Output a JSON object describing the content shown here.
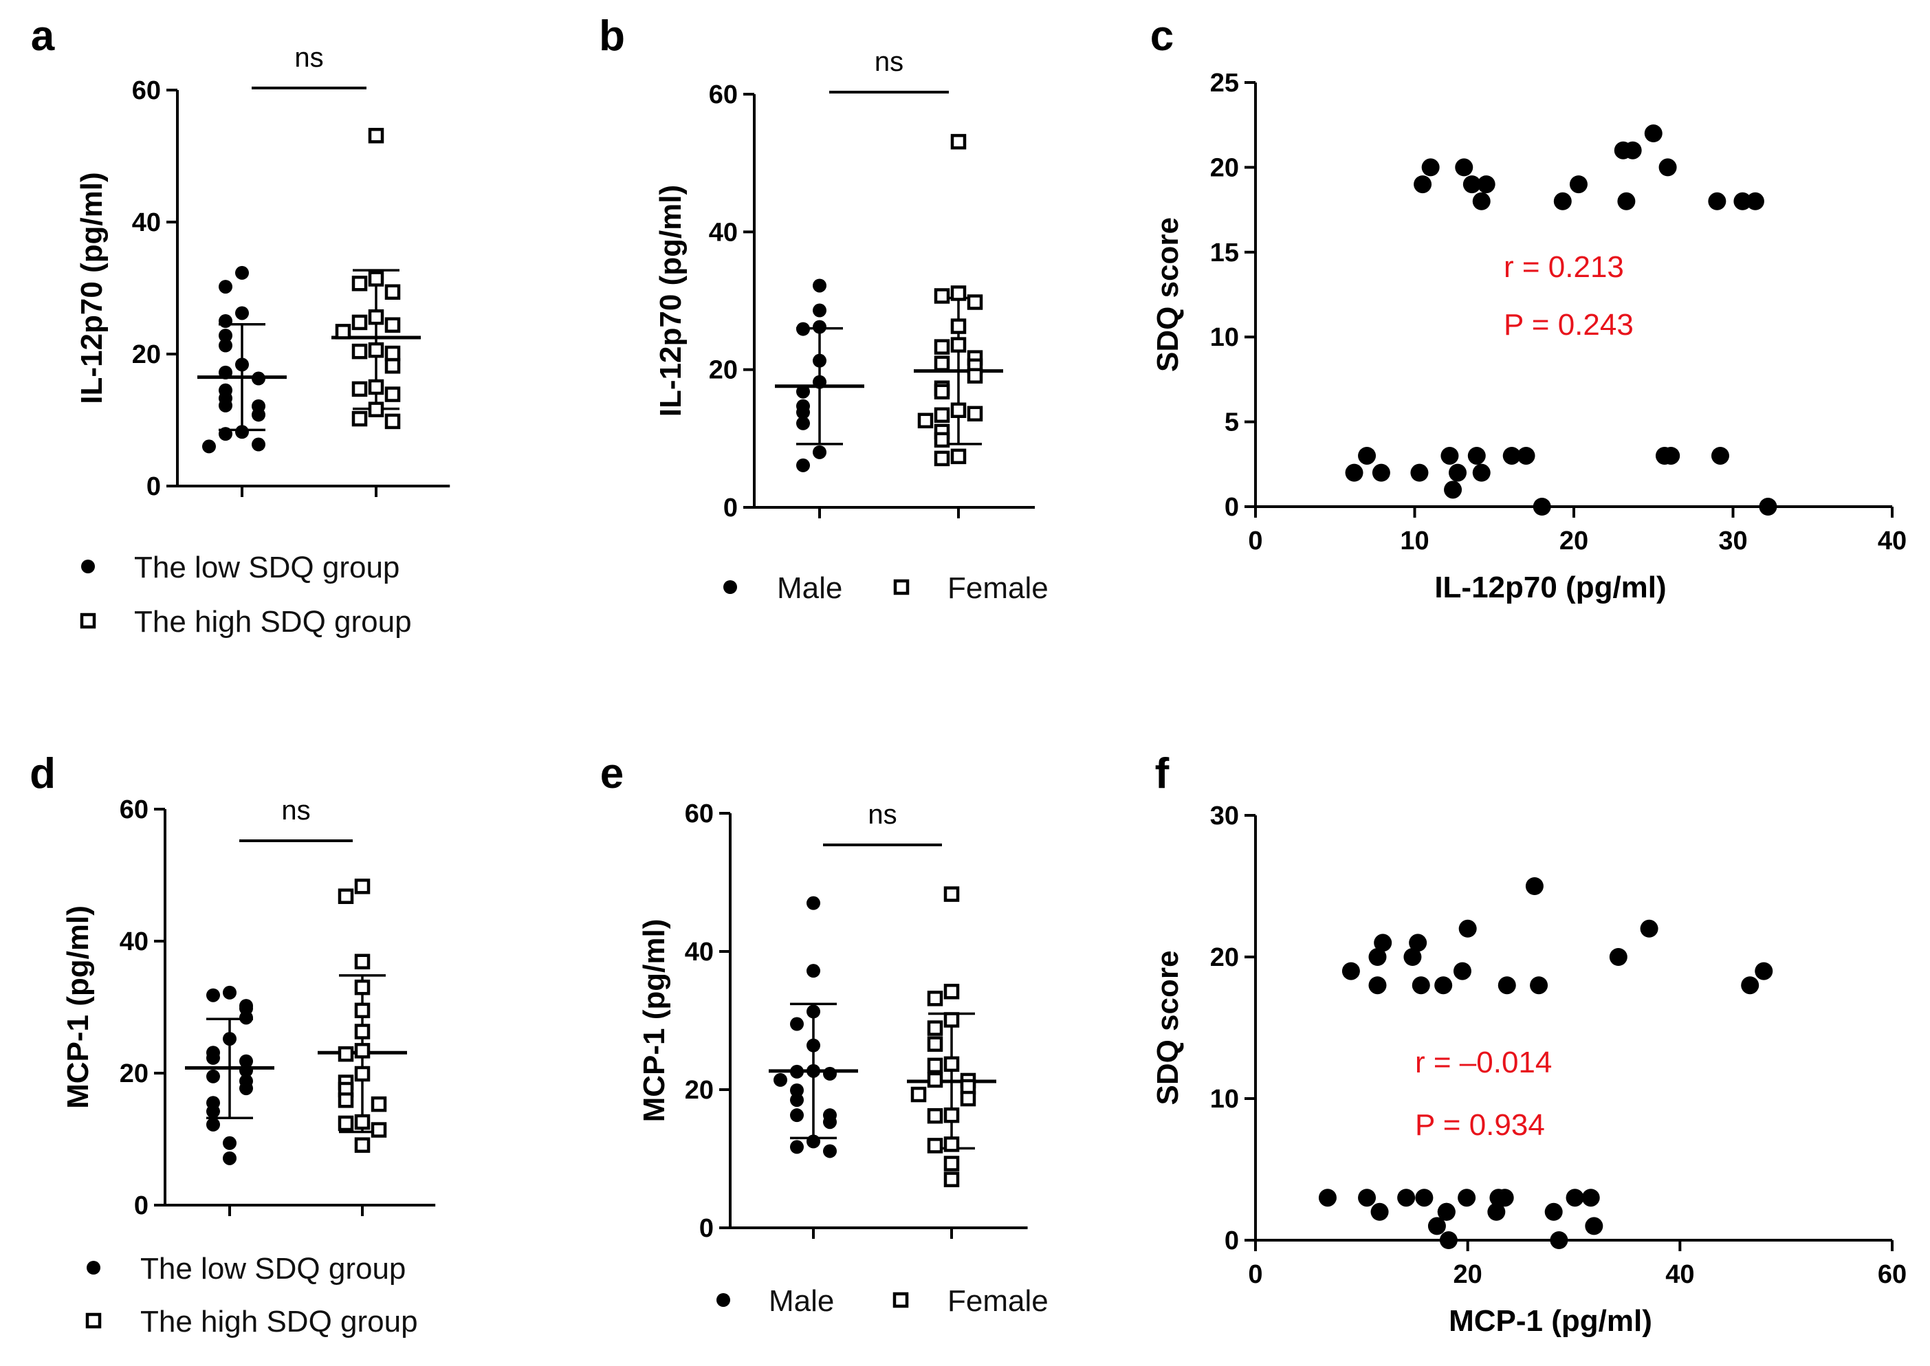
{
  "figure": {
    "colors": {
      "ink": "#000000",
      "annotation": "#e8131b"
    }
  },
  "chart_data": [
    {
      "panel": "a",
      "type": "scatter",
      "subtype": "dot-plot-mean-sd",
      "ylabel": "IL-12p70 (pg/ml)",
      "ylim": [
        0,
        60
      ],
      "yticks": [
        "0",
        "20",
        "40",
        "60"
      ],
      "significance": "ns",
      "series": [
        {
          "name": "The low SDQ group",
          "marker": "filled-circle",
          "mean": 16.5,
          "sd_low": 8.5,
          "sd_high": 24.5,
          "values": [
            32.3,
            30.2,
            26.2,
            25,
            22.8,
            21.3,
            18.4,
            17.2,
            16.3,
            14.5,
            13.3,
            12.2,
            12.1,
            10.8,
            8.2,
            7.9,
            6.3,
            6
          ]
        },
        {
          "name": "The high SDQ group",
          "marker": "open-square",
          "mean": 22.5,
          "sd_low": 11.7,
          "sd_high": 32.7,
          "values": [
            53.1,
            31.4,
            30.7,
            29.4,
            25.6,
            24.8,
            24.4,
            23.4,
            20.6,
            20.4,
            20.1,
            18.2,
            15,
            14.7,
            13.9,
            11.6,
            10.2,
            9.8
          ]
        }
      ]
    },
    {
      "panel": "b",
      "type": "scatter",
      "subtype": "dot-plot-mean-sd",
      "ylabel": "IL-12p70 (pg/ml)",
      "ylim": [
        0,
        60
      ],
      "yticks": [
        "0",
        "20",
        "40",
        "60"
      ],
      "significance": "ns",
      "series": [
        {
          "name": "Male",
          "marker": "filled-circle",
          "mean": 17.6,
          "sd_low": 9.2,
          "sd_high": 26,
          "values": [
            32.2,
            28.6,
            26.2,
            25.9,
            21.3,
            18.2,
            16.8,
            14.7,
            13.8,
            12.2,
            8,
            6.1
          ]
        },
        {
          "name": "Female",
          "marker": "open-square",
          "mean": 19.8,
          "sd_low": 9.2,
          "sd_high": 30.4,
          "values": [
            53.1,
            31.1,
            30.7,
            29.8,
            26.3,
            23.6,
            23.3,
            21.7,
            20.9,
            20.5,
            19.1,
            17.3,
            16.8,
            14.1,
            13.4,
            13.6,
            12.6,
            11,
            9.8,
            7.4,
            7.1
          ]
        }
      ]
    },
    {
      "panel": "c",
      "type": "scatter",
      "xlabel": "IL-12p70 (pg/ml)",
      "ylabel": "SDQ score",
      "xlim": [
        0,
        40
      ],
      "ylim": [
        0,
        25
      ],
      "xticks": [
        "0",
        "10",
        "20",
        "30",
        "40"
      ],
      "yticks": [
        "0",
        "5",
        "10",
        "15",
        "20",
        "25"
      ],
      "stats": {
        "r": "r = 0.213",
        "p": "P = 0.243"
      },
      "points": [
        [
          10.5,
          19
        ],
        [
          11.0,
          20
        ],
        [
          13.1,
          20
        ],
        [
          13.6,
          19
        ],
        [
          14.2,
          18
        ],
        [
          14.5,
          19
        ],
        [
          19.3,
          18
        ],
        [
          20.3,
          19
        ],
        [
          23.1,
          21
        ],
        [
          23.3,
          18
        ],
        [
          23.7,
          21
        ],
        [
          25.0,
          22
        ],
        [
          25.9,
          20
        ],
        [
          29.0,
          18
        ],
        [
          30.6,
          18
        ],
        [
          31.4,
          18
        ],
        [
          6.2,
          2
        ],
        [
          7.0,
          3
        ],
        [
          7.9,
          2
        ],
        [
          10.3,
          2
        ],
        [
          12.2,
          3
        ],
        [
          12.4,
          1
        ],
        [
          12.7,
          2
        ],
        [
          13.9,
          3
        ],
        [
          14.2,
          2
        ],
        [
          16.1,
          3
        ],
        [
          17.0,
          3
        ],
        [
          18.0,
          0
        ],
        [
          25.7,
          3
        ],
        [
          26.1,
          3
        ],
        [
          29.2,
          3
        ],
        [
          32.2,
          0
        ]
      ]
    },
    {
      "panel": "d",
      "type": "scatter",
      "subtype": "dot-plot-mean-sd",
      "ylabel": "MCP-1 (pg/ml)",
      "ylim": [
        0,
        60
      ],
      "yticks": [
        "0",
        "20",
        "40",
        "60"
      ],
      "significance": "ns",
      "series": [
        {
          "name": "The low SDQ group",
          "marker": "filled-circle",
          "mean": 20.8,
          "sd_low": 13.2,
          "sd_high": 28.2,
          "values": [
            32.2,
            31.8,
            30.2,
            29.8,
            28.4,
            25.2,
            23.1,
            22.3,
            21.8,
            20.4,
            19.5,
            18.8,
            17.7,
            15.5,
            14.2,
            12.2,
            9.4,
            7.1
          ]
        },
        {
          "name": "The high SDQ group",
          "marker": "open-square",
          "mean": 23.1,
          "sd_low": 11.1,
          "sd_high": 34.8,
          "values": [
            48.3,
            46.8,
            36.9,
            33,
            29.5,
            26.3,
            23.4,
            22.9,
            19.9,
            18.6,
            17.5,
            15.9,
            15.3,
            12.6,
            12.4,
            11.4,
            9.1
          ]
        }
      ]
    },
    {
      "panel": "e",
      "type": "scatter",
      "subtype": "dot-plot-mean-sd",
      "ylabel": "MCP-1 (pg/ml)",
      "ylim": [
        0,
        60
      ],
      "yticks": [
        "0",
        "20",
        "40",
        "60"
      ],
      "significance": "ns",
      "series": [
        {
          "name": "Male",
          "marker": "filled-circle",
          "mean": 22.7,
          "sd_low": 13,
          "sd_high": 32.4,
          "values": [
            47,
            37.2,
            31.3,
            29.5,
            26.4,
            22.7,
            22.6,
            22.3,
            21.4,
            19.9,
            18.5,
            16.3,
            16.3,
            15.3,
            12.5,
            11.7,
            11.1
          ]
        },
        {
          "name": "Female",
          "marker": "open-square",
          "mean": 21.2,
          "sd_low": 11.5,
          "sd_high": 31,
          "values": [
            48.3,
            34.2,
            33.2,
            30.1,
            28.9,
            26.6,
            23.7,
            23.5,
            21.4,
            21.3,
            20.4,
            19.3,
            18.7,
            16.3,
            16.2,
            12.1,
            11.9,
            9.3,
            7
          ]
        }
      ]
    },
    {
      "panel": "f",
      "type": "scatter",
      "xlabel": "MCP-1 (pg/ml)",
      "ylabel": "SDQ score",
      "xlim": [
        0,
        60
      ],
      "ylim": [
        0,
        30
      ],
      "xticks": [
        "0",
        "20",
        "40",
        "60"
      ],
      "yticks": [
        "0",
        "10",
        "20",
        "30"
      ],
      "stats": {
        "r": "r = –0.014",
        "p": "P = 0.934"
      },
      "points": [
        [
          9.0,
          19
        ],
        [
          11.5,
          20
        ],
        [
          12.0,
          21
        ],
        [
          11.5,
          18
        ],
        [
          14.8,
          20
        ],
        [
          15.3,
          21
        ],
        [
          15.6,
          18
        ],
        [
          17.7,
          18
        ],
        [
          19.5,
          19
        ],
        [
          20.0,
          22
        ],
        [
          23.7,
          18
        ],
        [
          26.3,
          25
        ],
        [
          26.7,
          18
        ],
        [
          34.2,
          20
        ],
        [
          37.1,
          22
        ],
        [
          46.6,
          18
        ],
        [
          47.9,
          19
        ],
        [
          6.8,
          3
        ],
        [
          10.5,
          3
        ],
        [
          11.7,
          2
        ],
        [
          14.2,
          3
        ],
        [
          15.9,
          3
        ],
        [
          17.1,
          1
        ],
        [
          18.0,
          2
        ],
        [
          18.0,
          2
        ],
        [
          18.2,
          0
        ],
        [
          19.9,
          3
        ],
        [
          22.7,
          2
        ],
        [
          22.9,
          3
        ],
        [
          23.5,
          3
        ],
        [
          28.1,
          2
        ],
        [
          28.6,
          0
        ],
        [
          30.1,
          3
        ],
        [
          31.6,
          3
        ],
        [
          31.9,
          1
        ]
      ]
    }
  ]
}
